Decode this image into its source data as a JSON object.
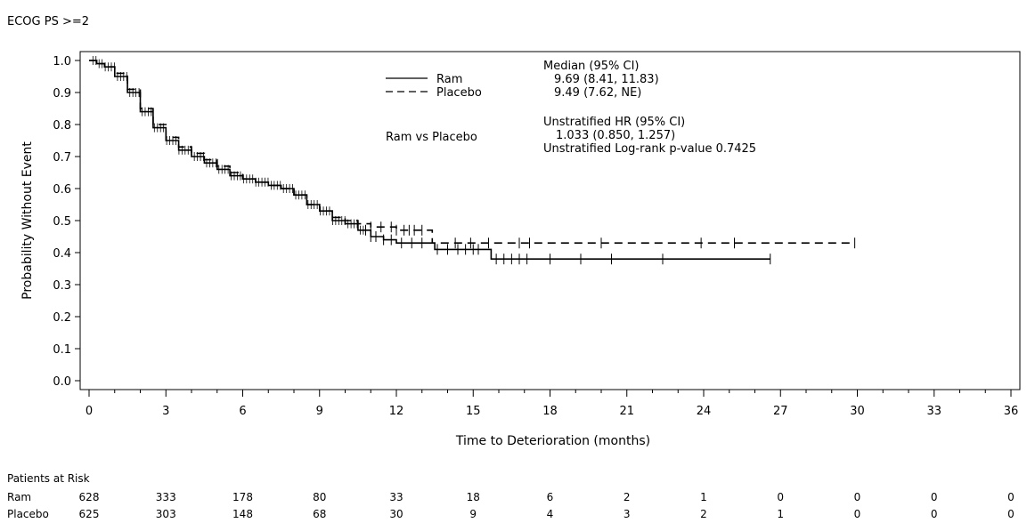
{
  "chart_data": {
    "type": "line",
    "subtitle": "ECOG PS >=2",
    "xlabel": "Time to Deterioration (months)",
    "ylabel": "Probability Without Event",
    "xlim": [
      0,
      36
    ],
    "ylim": [
      0,
      1
    ],
    "x_ticks": [
      0,
      3,
      6,
      9,
      12,
      15,
      18,
      21,
      24,
      27,
      30,
      33,
      36
    ],
    "y_ticks": [
      "0.0",
      "0.1",
      "0.2",
      "0.3",
      "0.4",
      "0.5",
      "0.6",
      "0.7",
      "0.8",
      "0.9",
      "1.0"
    ],
    "series": [
      {
        "name": "Ram",
        "style": "solid",
        "points": [
          [
            0,
            1.0
          ],
          [
            0.3,
            0.99
          ],
          [
            0.6,
            0.98
          ],
          [
            1.0,
            0.95
          ],
          [
            1.5,
            0.9
          ],
          [
            2.0,
            0.84
          ],
          [
            2.5,
            0.79
          ],
          [
            3.0,
            0.75
          ],
          [
            3.5,
            0.72
          ],
          [
            4.0,
            0.7
          ],
          [
            4.5,
            0.68
          ],
          [
            5.0,
            0.66
          ],
          [
            5.5,
            0.64
          ],
          [
            6.0,
            0.63
          ],
          [
            6.5,
            0.62
          ],
          [
            7.0,
            0.61
          ],
          [
            7.5,
            0.6
          ],
          [
            8.0,
            0.58
          ],
          [
            8.5,
            0.55
          ],
          [
            9.0,
            0.53
          ],
          [
            9.5,
            0.5
          ],
          [
            10.0,
            0.49
          ],
          [
            10.5,
            0.47
          ],
          [
            11.0,
            0.45
          ],
          [
            11.5,
            0.44
          ],
          [
            12.0,
            0.43
          ],
          [
            13.0,
            0.43
          ],
          [
            13.5,
            0.41
          ],
          [
            15.5,
            0.41
          ],
          [
            15.7,
            0.38
          ],
          [
            26.6,
            0.38
          ]
        ],
        "censor_x": [
          10.8,
          11.0,
          11.2,
          11.5,
          11.8,
          12.2,
          12.6,
          13.0,
          13.6,
          14.0,
          14.4,
          14.7,
          15.0,
          15.2,
          15.9,
          16.2,
          16.5,
          16.8,
          17.1,
          18.0,
          19.2,
          20.4,
          22.4,
          26.6
        ]
      },
      {
        "name": "Placebo",
        "style": "dashed",
        "points": [
          [
            0,
            1.0
          ],
          [
            0.3,
            0.99
          ],
          [
            0.6,
            0.98
          ],
          [
            1.0,
            0.96
          ],
          [
            1.5,
            0.91
          ],
          [
            2.0,
            0.85
          ],
          [
            2.5,
            0.8
          ],
          [
            3.0,
            0.76
          ],
          [
            3.5,
            0.73
          ],
          [
            4.0,
            0.71
          ],
          [
            4.5,
            0.69
          ],
          [
            5.0,
            0.67
          ],
          [
            5.5,
            0.65
          ],
          [
            6.0,
            0.63
          ],
          [
            6.5,
            0.62
          ],
          [
            7.0,
            0.61
          ],
          [
            7.5,
            0.6
          ],
          [
            8.0,
            0.58
          ],
          [
            8.5,
            0.55
          ],
          [
            9.0,
            0.53
          ],
          [
            9.5,
            0.51
          ],
          [
            10.0,
            0.5
          ],
          [
            10.5,
            0.49
          ],
          [
            11.0,
            0.48
          ],
          [
            12.0,
            0.47
          ],
          [
            13.0,
            0.47
          ],
          [
            13.4,
            0.43
          ],
          [
            29.9,
            0.43
          ]
        ],
        "censor_x": [
          11.0,
          11.4,
          11.8,
          12.0,
          12.3,
          12.5,
          12.7,
          13.0,
          14.3,
          14.9,
          15.6,
          16.8,
          17.2,
          20.0,
          23.9,
          25.2,
          29.9
        ]
      }
    ],
    "legend": {
      "position": "top-center",
      "entries": [
        "Ram",
        "Placebo"
      ]
    },
    "annotations": {
      "median_header": "Median (95% CI)",
      "median_ram": "9.69 (8.41, 11.83)",
      "median_placebo": "9.49 (7.62, NE)",
      "comparison_label": "Ram vs Placebo",
      "hr_header": "Unstratified HR (95% CI)",
      "hr_value": "1.033 (0.850, 1.257)",
      "logrank": "Unstratified Log-rank p-value  0.7425"
    },
    "risk_table": {
      "title": "Patients at Risk",
      "rows": [
        {
          "label": "Ram",
          "values": [
            628,
            333,
            178,
            80,
            33,
            18,
            6,
            2,
            1,
            0,
            0,
            0,
            0
          ]
        },
        {
          "label": "Placebo",
          "values": [
            625,
            303,
            148,
            68,
            30,
            9,
            4,
            3,
            2,
            1,
            0,
            0,
            0
          ]
        }
      ]
    }
  }
}
